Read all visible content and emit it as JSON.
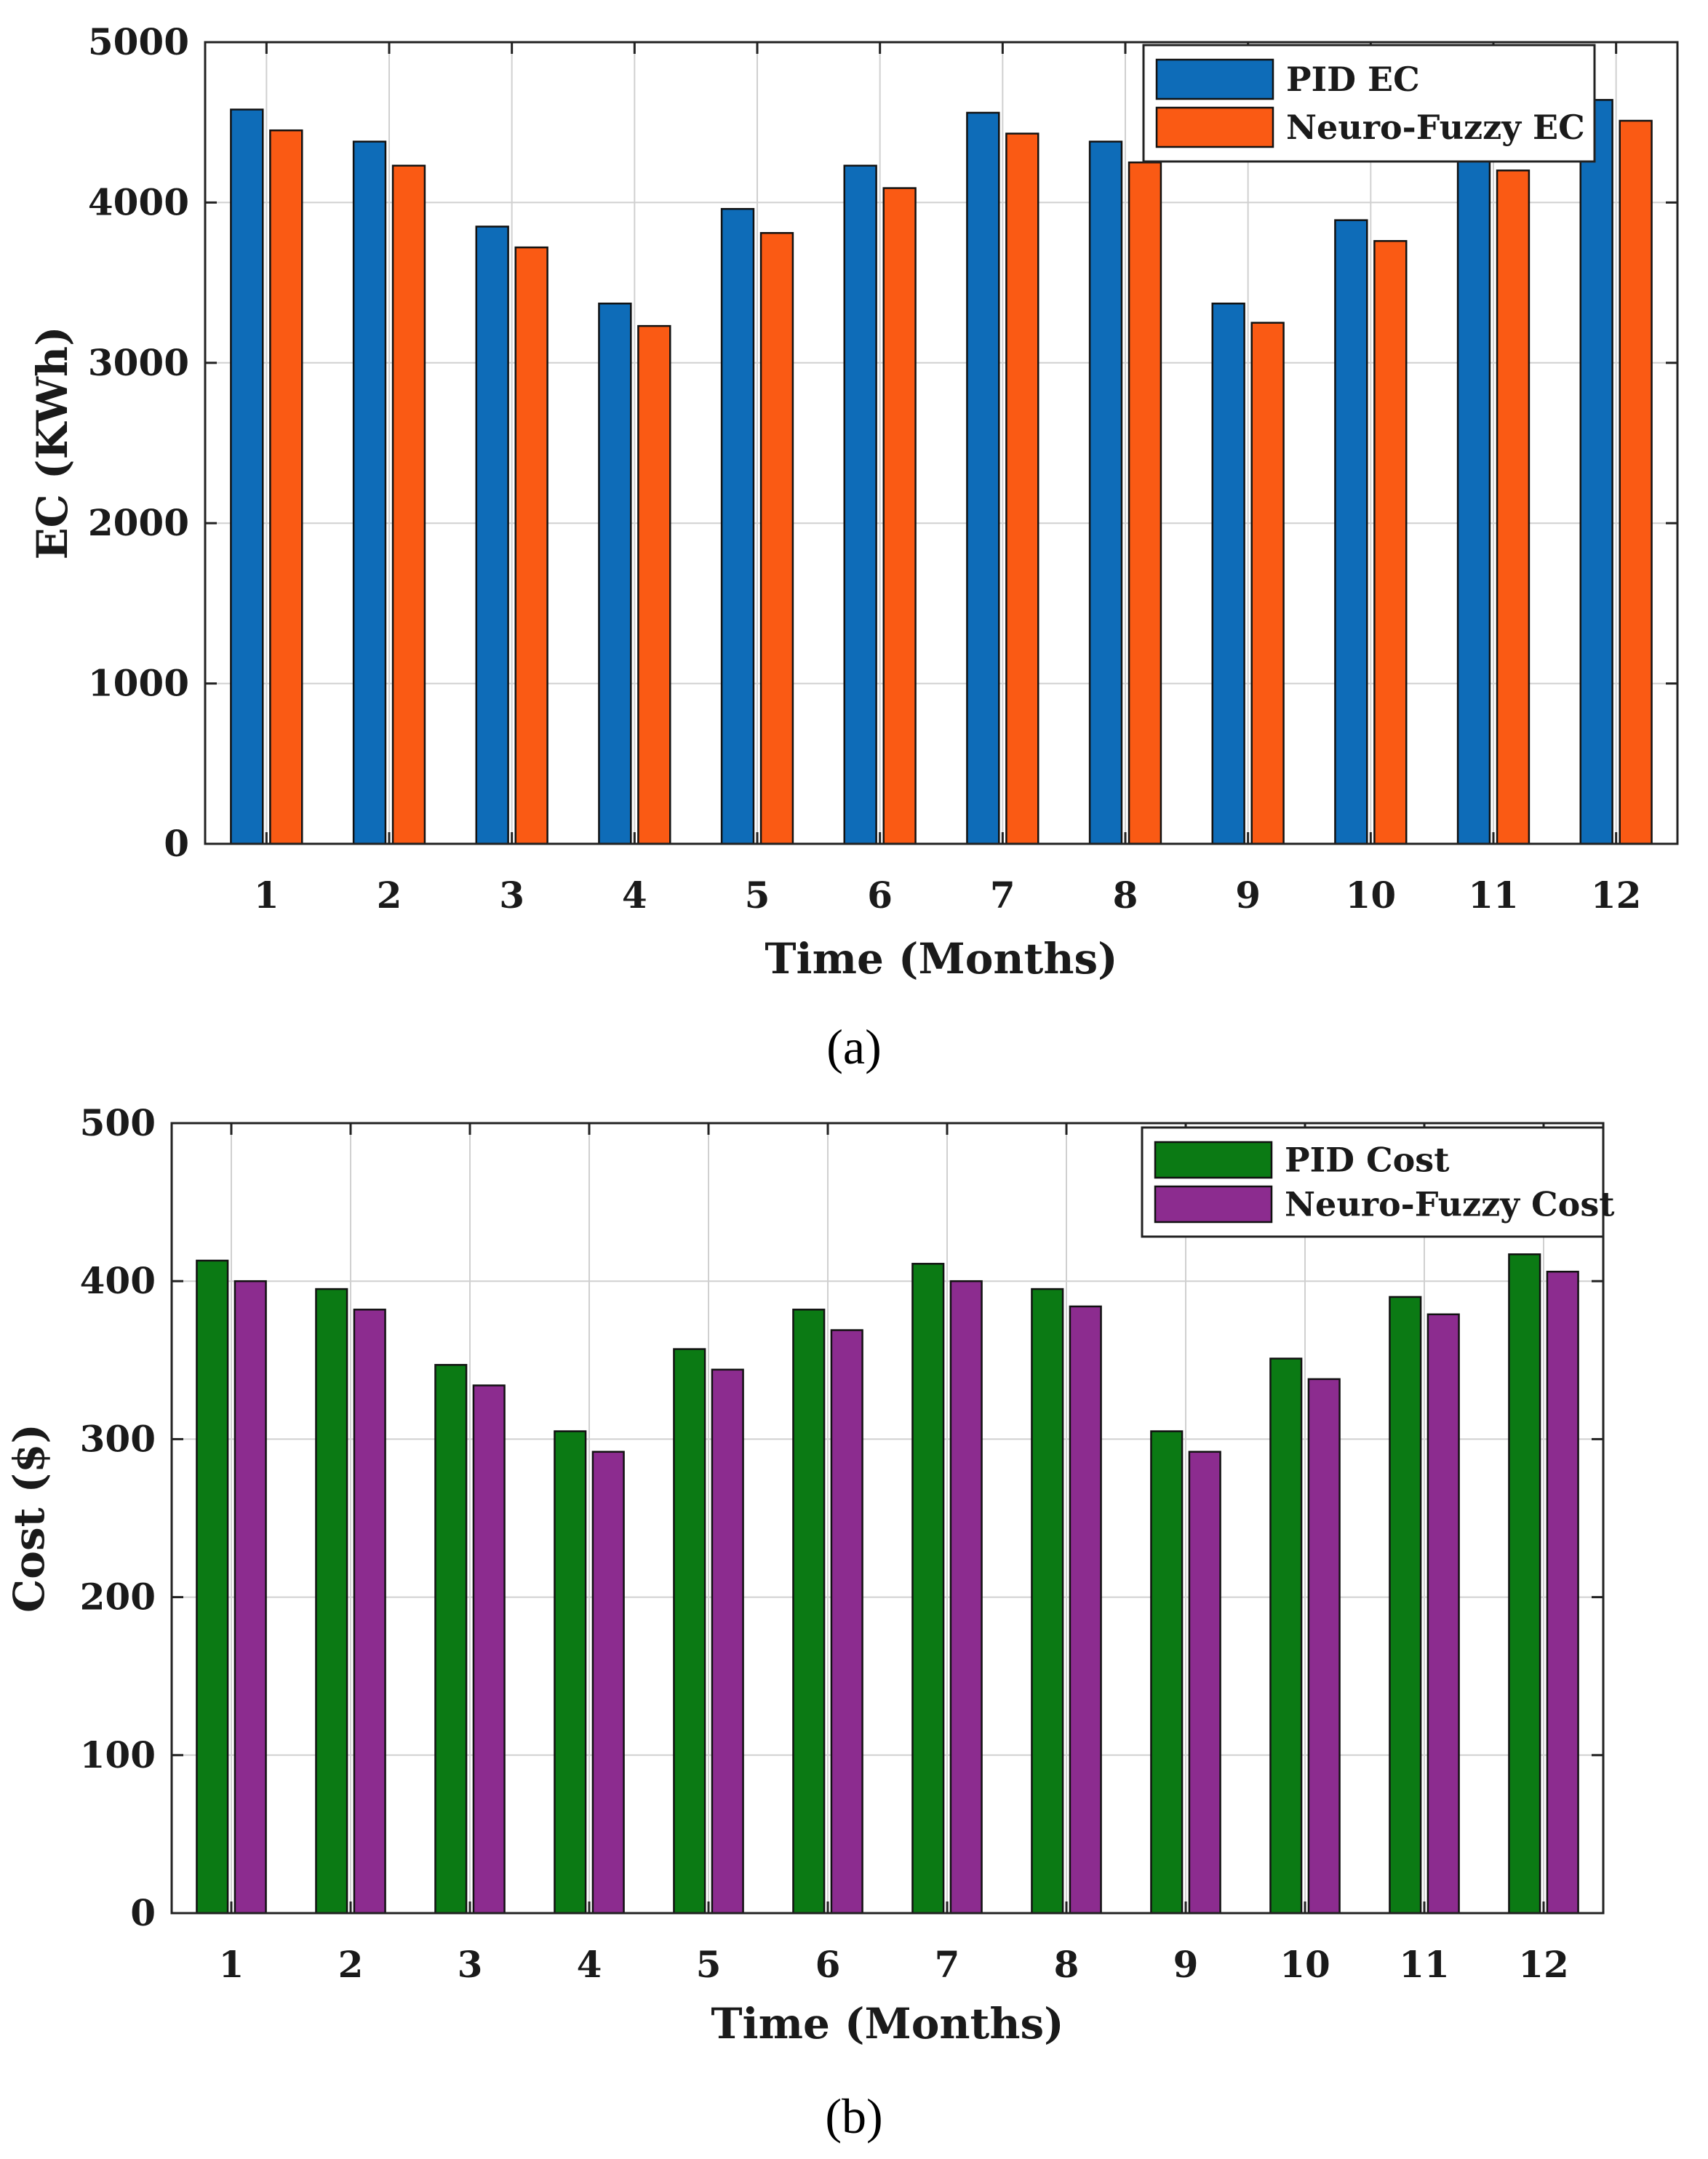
{
  "chart_data": [
    {
      "type": "bar",
      "panel_label": "(a)",
      "categories": [
        "1",
        "2",
        "3",
        "4",
        "5",
        "6",
        "7",
        "8",
        "9",
        "10",
        "11",
        "12"
      ],
      "series": [
        {
          "name": "PID EC",
          "color": "#0e6cb8",
          "values": [
            4580,
            4380,
            3850,
            3370,
            3960,
            4230,
            4560,
            4380,
            3370,
            3890,
            4350,
            4640
          ]
        },
        {
          "name": "Neuro-Fuzzy EC",
          "color": "#fa5a14",
          "values": [
            4450,
            4230,
            3720,
            3230,
            3810,
            4090,
            4430,
            4250,
            3250,
            3760,
            4200,
            4510
          ]
        }
      ],
      "xlabel": "Time (Months)",
      "ylabel": "EC (KWh)",
      "ylim": [
        0,
        5000
      ],
      "yticks": [
        "0",
        "1000",
        "2000",
        "3000",
        "4000",
        "5000"
      ],
      "grid": true,
      "legend_position": "top-right"
    },
    {
      "type": "bar",
      "panel_label": "(b)",
      "categories": [
        "1",
        "2",
        "3",
        "4",
        "5",
        "6",
        "7",
        "8",
        "9",
        "10",
        "11",
        "12"
      ],
      "series": [
        {
          "name": "PID Cost",
          "color": "#0b7a14",
          "values": [
            413,
            395,
            347,
            305,
            357,
            382,
            411,
            395,
            305,
            351,
            390,
            417
          ]
        },
        {
          "name": "Neuro-Fuzzy Cost",
          "color": "#8c2c8f",
          "values": [
            400,
            382,
            334,
            292,
            344,
            369,
            400,
            384,
            292,
            338,
            379,
            406
          ]
        }
      ],
      "xlabel": "Time (Months)",
      "ylabel": "Cost ($)",
      "ylim": [
        0,
        500
      ],
      "yticks": [
        "0",
        "100",
        "200",
        "300",
        "400",
        "500"
      ],
      "grid": true,
      "legend_position": "top-right"
    }
  ]
}
